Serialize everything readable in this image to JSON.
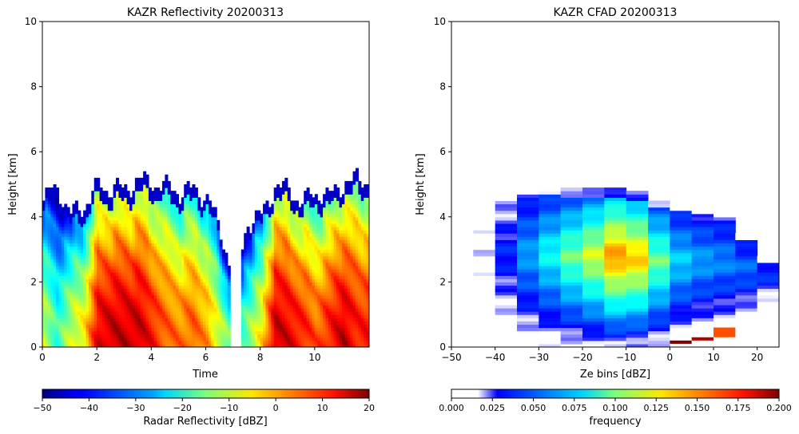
{
  "chart_data": [
    {
      "type": "heatmap",
      "title": "KAZR Reflectivity 20200313",
      "xlabel": "Time",
      "ylabel": "Height [km]",
      "xlim": [
        0,
        12
      ],
      "ylim": [
        0,
        10
      ],
      "xticks": [
        "0",
        "2",
        "4",
        "6",
        "8",
        "10"
      ],
      "yticks": [
        "0",
        "2",
        "4",
        "6",
        "8",
        "10"
      ],
      "colorbar": {
        "label": "Radar Reflectivity [dBZ]",
        "range": [
          -50,
          20
        ],
        "ticks": [
          "−50",
          "−40",
          "−30",
          "−20",
          "−10",
          "0",
          "10",
          "20"
        ],
        "colormap": "jet"
      },
      "columns": [
        {
          "t": 0.0,
          "top": 4.5,
          "core": -5
        },
        {
          "t": 0.5,
          "top": 4.9,
          "core": -15
        },
        {
          "t": 1.0,
          "top": 4.0,
          "core": -5
        },
        {
          "t": 1.5,
          "top": 4.3,
          "core": 0
        },
        {
          "t": 2.0,
          "top": 4.9,
          "core": 18
        },
        {
          "t": 2.5,
          "top": 4.8,
          "core": 20
        },
        {
          "t": 3.0,
          "top": 4.8,
          "core": 20
        },
        {
          "t": 3.5,
          "top": 5.1,
          "core": 20
        },
        {
          "t": 4.0,
          "top": 5.0,
          "core": 15
        },
        {
          "t": 4.5,
          "top": 4.9,
          "core": 10
        },
        {
          "t": 5.0,
          "top": 4.7,
          "core": 8
        },
        {
          "t": 5.5,
          "top": 4.8,
          "core": 10
        },
        {
          "t": 6.0,
          "top": 4.6,
          "core": 5
        },
        {
          "t": 6.5,
          "top": 3.5,
          "core": -5
        },
        {
          "t": 7.0,
          "top": 2.0,
          "core": -15
        },
        {
          "t": 7.5,
          "top": 3.8,
          "core": -10
        },
        {
          "t": 8.0,
          "top": 4.0,
          "core": 0
        },
        {
          "t": 8.5,
          "top": 4.9,
          "core": 20
        },
        {
          "t": 9.0,
          "top": 4.8,
          "core": 18
        },
        {
          "t": 9.5,
          "top": 4.4,
          "core": 15
        },
        {
          "t": 10.0,
          "top": 4.7,
          "core": 10
        },
        {
          "t": 10.5,
          "top": 4.6,
          "core": 15
        },
        {
          "t": 11.0,
          "top": 5.0,
          "core": 20
        },
        {
          "t": 11.5,
          "top": 5.1,
          "core": 15
        }
      ]
    },
    {
      "type": "heatmap",
      "title": "KAZR CFAD 20200313",
      "xlabel": "Ze bins [dBZ]",
      "ylabel": "Height [km]",
      "xlim": [
        -50,
        25
      ],
      "ylim": [
        0,
        10
      ],
      "xticks": [
        "−50",
        "−40",
        "−30",
        "−20",
        "−10",
        "0",
        "10",
        "20"
      ],
      "yticks": [
        "0",
        "2",
        "4",
        "6",
        "8",
        "10"
      ],
      "colorbar": {
        "label": "frequency",
        "range": [
          0,
          0.2
        ],
        "ticks": [
          "0.000",
          "0.025",
          "0.050",
          "0.075",
          "0.100",
          "0.125",
          "0.150",
          "0.175",
          "0.200"
        ],
        "colormap": "jet_white"
      },
      "bins": [
        {
          "ze": -50,
          "top": 4.8,
          "bottom": 0.2,
          "peak": 0.01
        },
        {
          "ze": -45,
          "top": 4.8,
          "bottom": 0.2,
          "peak": 0.015
        },
        {
          "ze": -40,
          "top": 4.9,
          "bottom": 0.0,
          "peak": 0.035
        },
        {
          "ze": -35,
          "top": 4.9,
          "bottom": 0.0,
          "peak": 0.06
        },
        {
          "ze": -30,
          "top": 4.9,
          "bottom": 0.0,
          "peak": 0.08
        },
        {
          "ze": -25,
          "top": 4.8,
          "bottom": 0.0,
          "peak": 0.1
        },
        {
          "ze": -20,
          "top": 4.8,
          "bottom": 0.0,
          "peak": 0.12
        },
        {
          "ze": -15,
          "top": 4.8,
          "bottom": 0.0,
          "peak": 0.15
        },
        {
          "ze": -10,
          "top": 4.7,
          "bottom": 0.0,
          "peak": 0.14
        },
        {
          "ze": -5,
          "top": 4.5,
          "bottom": 0.0,
          "peak": 0.1
        },
        {
          "ze": 0,
          "top": 4.4,
          "bottom": 0.1,
          "peak": 0.07
        },
        {
          "ze": 5,
          "top": 4.3,
          "bottom": 0.2,
          "peak": 0.06
        },
        {
          "ze": 10,
          "top": 4.2,
          "bottom": 0.3,
          "peak": 0.055
        },
        {
          "ze": 15,
          "top": 3.5,
          "bottom": 0.6,
          "peak": 0.05
        },
        {
          "ze": 20,
          "top": 2.8,
          "bottom": 1.0,
          "peak": 0.04
        }
      ],
      "highlights": [
        {
          "ze": 0,
          "y0": 0.1,
          "y1": 0.2,
          "value": 0.2
        },
        {
          "ze": 5,
          "y0": 0.2,
          "y1": 0.3,
          "value": 0.19
        },
        {
          "ze": 10,
          "y0": 0.3,
          "y1": 0.6,
          "value": 0.16
        }
      ]
    }
  ]
}
